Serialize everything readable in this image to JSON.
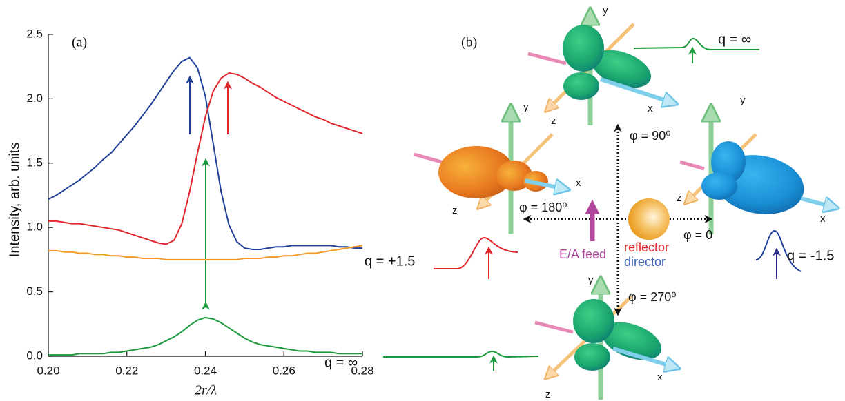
{
  "chart_data": {
    "type": "line",
    "annotation": "(a)",
    "xlabel": "2r/λ",
    "ylabel": "Intensity, arb. units",
    "x": [
      0.2,
      0.202,
      0.204,
      0.206,
      0.208,
      0.21,
      0.212,
      0.214,
      0.216,
      0.218,
      0.22,
      0.222,
      0.224,
      0.226,
      0.228,
      0.23,
      0.232,
      0.234,
      0.236,
      0.238,
      0.24,
      0.242,
      0.244,
      0.246,
      0.248,
      0.25,
      0.252,
      0.254,
      0.256,
      0.258,
      0.26,
      0.262,
      0.264,
      0.266,
      0.268,
      0.27,
      0.272,
      0.274,
      0.276,
      0.278,
      0.28
    ],
    "series": [
      {
        "color": "#1f3f99",
        "values": [
          1.22,
          1.25,
          1.29,
          1.33,
          1.37,
          1.42,
          1.47,
          1.53,
          1.58,
          1.65,
          1.72,
          1.79,
          1.87,
          1.95,
          2.04,
          2.13,
          2.22,
          2.29,
          2.32,
          2.24,
          2.02,
          1.65,
          1.28,
          1.02,
          0.89,
          0.84,
          0.83,
          0.83,
          0.84,
          0.85,
          0.85,
          0.86,
          0.86,
          0.86,
          0.86,
          0.86,
          0.86,
          0.85,
          0.85,
          0.84,
          0.84
        ]
      },
      {
        "color": "#e0262b",
        "values": [
          1.05,
          1.05,
          1.04,
          1.03,
          1.03,
          1.02,
          1.01,
          1.0,
          0.99,
          0.98,
          0.96,
          0.94,
          0.92,
          0.9,
          0.88,
          0.87,
          0.9,
          1.03,
          1.28,
          1.58,
          1.86,
          2.06,
          2.16,
          2.2,
          2.19,
          2.16,
          2.12,
          2.09,
          2.05,
          2.01,
          1.98,
          1.95,
          1.92,
          1.89,
          1.86,
          1.84,
          1.81,
          1.79,
          1.77,
          1.75,
          1.73
        ]
      },
      {
        "color": "#f39a27",
        "values": [
          0.82,
          0.82,
          0.81,
          0.81,
          0.8,
          0.8,
          0.79,
          0.79,
          0.78,
          0.78,
          0.77,
          0.77,
          0.76,
          0.76,
          0.76,
          0.75,
          0.75,
          0.75,
          0.75,
          0.75,
          0.75,
          0.75,
          0.75,
          0.75,
          0.75,
          0.76,
          0.76,
          0.76,
          0.77,
          0.77,
          0.78,
          0.78,
          0.79,
          0.8,
          0.8,
          0.81,
          0.82,
          0.83,
          0.84,
          0.85,
          0.86
        ]
      },
      {
        "color": "#1a9a3c",
        "values": [
          0.01,
          0.01,
          0.01,
          0.01,
          0.02,
          0.02,
          0.02,
          0.02,
          0.03,
          0.03,
          0.04,
          0.05,
          0.06,
          0.07,
          0.09,
          0.12,
          0.15,
          0.19,
          0.24,
          0.28,
          0.3,
          0.29,
          0.26,
          0.22,
          0.18,
          0.14,
          0.11,
          0.09,
          0.08,
          0.07,
          0.06,
          0.05,
          0.04,
          0.04,
          0.03,
          0.03,
          0.03,
          0.02,
          0.02,
          0.02,
          0.02
        ]
      }
    ],
    "xlim": [
      0.2,
      0.28
    ],
    "xticks": [
      {
        "value": 0.2,
        "label": "0.20"
      },
      0.22,
      0.24,
      0.26,
      0.28
    ],
    "ylim": [
      0,
      2.5
    ],
    "yticks": [
      {
        "value": 0,
        "label": "0.0"
      },
      0.5,
      {
        "value": 1,
        "label": "1.0"
      },
      1.5,
      {
        "value": 2,
        "label": "2.0"
      },
      2.5
    ]
  },
  "diagram": {
    "label": "(b)",
    "top": {
      "y": "y",
      "x": "x",
      "z": "z",
      "q": "q = ∞"
    },
    "left": {
      "y": "y",
      "x": "x",
      "z": "z",
      "q": "q = +1.5"
    },
    "right": {
      "y": "y",
      "x": "x",
      "z": "z",
      "q": "q = -1.5"
    },
    "bottom": {
      "y": "y",
      "x": "x",
      "z": "z",
      "q": "q = ∞"
    },
    "phi": {
      "up": "φ = 90⁰",
      "left": "φ = 180⁰",
      "right": "φ = 0",
      "down": "φ = 270⁰"
    },
    "feed": "E/A feed",
    "reflector": "reflector",
    "director": "director"
  }
}
